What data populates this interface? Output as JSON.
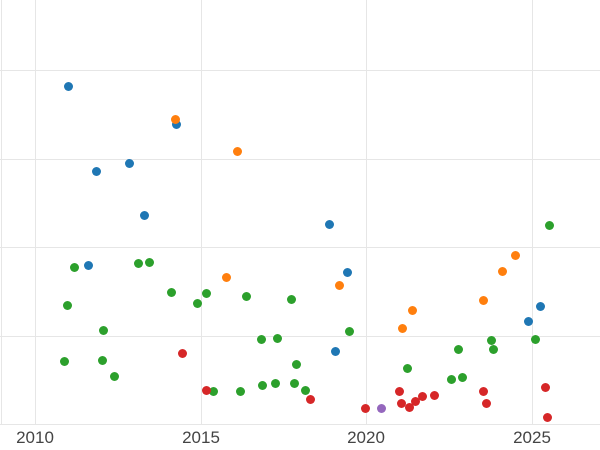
{
  "chart_data": {
    "type": "scatter",
    "title": "",
    "xlabel": "",
    "ylabel": "",
    "grid": true,
    "legend": "none",
    "xlim": [
      2008.95,
      2027.05
    ],
    "ylim": [
      -0.29,
      4.79
    ],
    "x_ticks": [
      2010,
      2015,
      2020,
      2025
    ],
    "x_tick_labels": [
      "2010",
      "2015",
      "2020",
      "2025"
    ],
    "y_ticks": [
      0,
      1,
      2,
      3,
      4
    ],
    "colors": {
      "grid": "#e6e6e6",
      "tick_text": "#444444",
      "background": "#ffffff"
    },
    "series": [
      {
        "name": "blue",
        "color": "#1f77b4",
        "points": [
          [
            2011.0,
            3.81
          ],
          [
            2014.28,
            3.38
          ],
          [
            2011.87,
            2.86
          ],
          [
            2012.86,
            2.95
          ],
          [
            2013.31,
            2.36
          ],
          [
            2018.89,
            2.26
          ],
          [
            2011.63,
            1.79
          ],
          [
            2019.43,
            1.71
          ],
          [
            2019.07,
            0.82
          ],
          [
            2024.88,
            1.16
          ],
          [
            2025.24,
            1.33
          ]
        ]
      },
      {
        "name": "orange",
        "color": "#ff7f0e",
        "points": [
          [
            2014.25,
            3.44
          ],
          [
            2016.11,
            3.08
          ],
          [
            2015.78,
            1.66
          ],
          [
            2019.19,
            1.57
          ],
          [
            2024.49,
            1.91
          ],
          [
            2024.1,
            1.73
          ],
          [
            2023.52,
            1.4
          ],
          [
            2021.08,
            1.08
          ],
          [
            2021.39,
            1.28
          ]
        ]
      },
      {
        "name": "green",
        "color": "#2ca02c",
        "points": [
          [
            2011.2,
            1.77
          ],
          [
            2013.13,
            1.82
          ],
          [
            2013.46,
            1.83
          ],
          [
            2010.99,
            1.34
          ],
          [
            2014.13,
            1.49
          ],
          [
            2015.18,
            1.48
          ],
          [
            2014.91,
            1.36
          ],
          [
            2016.39,
            1.44
          ],
          [
            2012.08,
            1.06
          ],
          [
            2010.9,
            0.71
          ],
          [
            2012.05,
            0.72
          ],
          [
            2012.41,
            0.54
          ],
          [
            2017.74,
            1.41
          ],
          [
            2016.84,
            0.96
          ],
          [
            2017.32,
            0.97
          ],
          [
            2017.89,
            0.68
          ],
          [
            2019.49,
            1.05
          ],
          [
            2018.16,
            0.38
          ],
          [
            2017.83,
            0.46
          ],
          [
            2016.2,
            0.37
          ],
          [
            2015.39,
            0.37
          ],
          [
            2016.87,
            0.44
          ],
          [
            2017.26,
            0.46
          ],
          [
            2021.23,
            0.63
          ],
          [
            2022.77,
            0.85
          ],
          [
            2022.89,
            0.53
          ],
          [
            2022.56,
            0.51
          ],
          [
            2023.77,
            0.95
          ],
          [
            2023.83,
            0.85
          ],
          [
            2025.51,
            2.25
          ],
          [
            2025.09,
            0.96
          ]
        ]
      },
      {
        "name": "red",
        "color": "#d62728",
        "points": [
          [
            2014.46,
            0.8
          ],
          [
            2015.18,
            0.38
          ],
          [
            2018.31,
            0.28
          ],
          [
            2019.97,
            0.18
          ],
          [
            2021.0,
            0.37
          ],
          [
            2021.05,
            0.23
          ],
          [
            2021.3,
            0.19
          ],
          [
            2021.48,
            0.26
          ],
          [
            2021.69,
            0.32
          ],
          [
            2022.05,
            0.33
          ],
          [
            2023.52,
            0.37
          ],
          [
            2023.61,
            0.23
          ],
          [
            2025.39,
            0.42
          ],
          [
            2025.45,
            0.08
          ]
        ]
      },
      {
        "name": "purple",
        "color": "#9467bd",
        "points": [
          [
            2020.45,
            0.18
          ]
        ]
      }
    ]
  }
}
